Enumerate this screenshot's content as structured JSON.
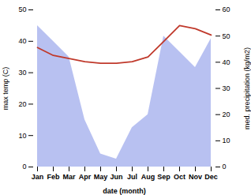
{
  "chart_data": {
    "type": "line",
    "categories": [
      "Jan",
      "Feb",
      "Mar",
      "Apr",
      "May",
      "Jun",
      "Jul",
      "Aug",
      "Sep",
      "Oct",
      "Nov",
      "Dec"
    ],
    "series": [
      {
        "type": "area",
        "color": "#b0baf0",
        "axis": "y2",
        "values": [
          54,
          48,
          42,
          18,
          5,
          3,
          15,
          20,
          50,
          44,
          38,
          49
        ]
      },
      {
        "type": "line",
        "color": "#c0392b",
        "values": [
          38.0,
          35.5,
          34.5,
          33.5,
          33.0,
          33.0,
          33.5,
          35.0,
          40.0,
          45.0,
          44.0,
          42.0
        ]
      }
    ],
    "xlabel": "date (month)",
    "ylabel": "max temp (C)",
    "y2label": "med. precipitation (kg/m2)",
    "ylim": [
      0,
      50
    ],
    "yticks": [
      0,
      10,
      20,
      30,
      40,
      50
    ],
    "y2lim": [
      0,
      60
    ],
    "y2ticks": [
      0,
      10,
      20,
      30,
      40,
      50,
      60
    ],
    "grid": false
  }
}
